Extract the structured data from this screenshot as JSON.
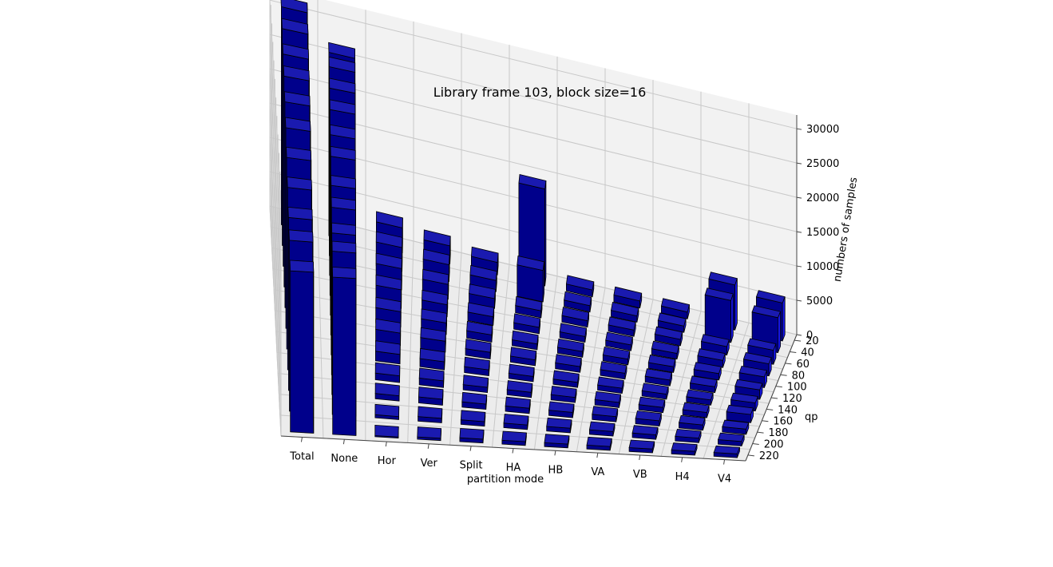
{
  "chart_data": {
    "type": "bar3d",
    "title": "Library frame 103, block size=16",
    "xlabel": "partition mode",
    "ylabel": "qp",
    "zlabel": "numbers of samples",
    "categories": [
      "Total",
      "None",
      "Hor",
      "Ver",
      "Split",
      "HA",
      "HB",
      "VA",
      "VB",
      "H4",
      "V4"
    ],
    "qp_ticks": [
      20,
      40,
      60,
      80,
      100,
      120,
      140,
      160,
      180,
      200,
      220
    ],
    "z_ticks": [
      0,
      5000,
      10000,
      15000,
      20000,
      25000,
      30000
    ],
    "zlim": [
      0,
      32000
    ],
    "grid": true,
    "bar_color": "#00008b",
    "bar_side_color": "#1515e8",
    "series": [
      {
        "qp": 220,
        "values": [
          21000,
          20500,
          150,
          300,
          500,
          500,
          500,
          500,
          500,
          500,
          500
        ]
      },
      {
        "qp": 200,
        "values": [
          22500,
          21500,
          400,
          600,
          600,
          600,
          600,
          600,
          600,
          600,
          600
        ]
      },
      {
        "qp": 180,
        "values": [
          23000,
          21500,
          700,
          800,
          700,
          700,
          700,
          700,
          700,
          700,
          700
        ]
      },
      {
        "qp": 160,
        "values": [
          24500,
          22500,
          900,
          900,
          700,
          700,
          700,
          700,
          700,
          700,
          1100
        ]
      },
      {
        "qp": 140,
        "values": [
          26000,
          23000,
          1300,
          1100,
          800,
          700,
          700,
          700,
          700,
          700,
          1100
        ]
      },
      {
        "qp": 120,
        "values": [
          27500,
          24500,
          1700,
          1500,
          900,
          800,
          800,
          800,
          800,
          800,
          1300
        ]
      },
      {
        "qp": 100,
        "values": [
          28500,
          25000,
          2100,
          1600,
          1000,
          800,
          800,
          800,
          800,
          900,
          1500
        ]
      },
      {
        "qp": 80,
        "values": [
          29500,
          26000,
          2600,
          1700,
          1200,
          900,
          800,
          800,
          800,
          1000,
          1700
        ]
      },
      {
        "qp": 60,
        "values": [
          30000,
          26500,
          3000,
          2100,
          1400,
          1000,
          900,
          900,
          900,
          1200,
          2000
        ]
      },
      {
        "qp": 40,
        "values": [
          31000,
          27000,
          3400,
          2400,
          1600,
          4500,
          900,
          900,
          900,
          6000,
          5000
        ]
      },
      {
        "qp": 20,
        "values": [
          31500,
          26500,
          3600,
          2600,
          1800,
          14000,
          1000,
          1000,
          1000,
          6500,
          5500
        ]
      }
    ]
  }
}
